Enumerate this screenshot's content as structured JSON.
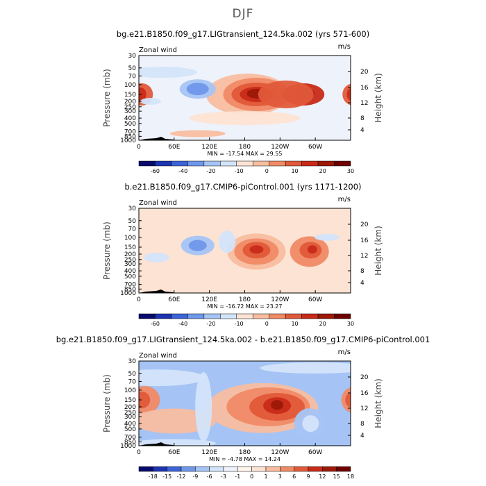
{
  "page_title": "DJF",
  "colors": {
    "seq_bar": [
      "#0a0a6e",
      "#1c34b0",
      "#3c64d8",
      "#6f97ea",
      "#a5c4f5",
      "#d3e4fa",
      "#fde3d3",
      "#f8bda0",
      "#f08a66",
      "#e05a3a",
      "#c82a18",
      "#9c1808",
      "#6e0000"
    ],
    "diff_bar": [
      "#0a0a6e",
      "#1c34b0",
      "#3c64d8",
      "#6f97ea",
      "#a5c4f5",
      "#d3e4fa",
      "#eef2fb",
      "#fff5ec",
      "#fde3d3",
      "#f8bda0",
      "#f08a66",
      "#e05a3a",
      "#c82a18",
      "#9c1808",
      "#6e0000"
    ]
  },
  "chart_data": [
    {
      "type": "contour",
      "panel_title": "bg.e21.B1850.f09_g17.LIGtransient_124.5ka.002 (yrs 571-600)",
      "left_string": "Zonal wind",
      "right_string": "m/s",
      "ylabel": "Pressure (mb)",
      "ylabel_right": "Height (km)",
      "yticks": [
        "30",
        "50",
        "70",
        "100",
        "150",
        "200",
        "250",
        "300",
        "400",
        "500",
        "700",
        "850",
        "1000"
      ],
      "yticks_right": [
        "20",
        "16",
        "12",
        "8",
        "4"
      ],
      "xticks": [
        "0",
        "60E",
        "120E",
        "180",
        "120W",
        "60W"
      ],
      "stats": "MIN = -17.54   MAX =  29.55",
      "levels": [
        "-60",
        "-40",
        "-20",
        "-10",
        "0",
        "10",
        "20",
        "30"
      ],
      "features": [
        {
          "lon": 200,
          "p": 150,
          "value": 29.55,
          "note": "max"
        },
        {
          "lon": 280,
          "p": 150,
          "value": 25
        },
        {
          "lon": 5,
          "p": 150,
          "value": 15
        },
        {
          "lon": 100,
          "p": 120,
          "value": -17.54,
          "note": "min"
        }
      ]
    },
    {
      "type": "contour",
      "panel_title": "b.e21.B1850.f09_g17.CMIP6-piControl.001 (yrs 1171-1200)",
      "left_string": "Zonal wind",
      "right_string": "m/s",
      "ylabel": "Pressure (mb)",
      "ylabel_right": "Height (km)",
      "yticks": [
        "30",
        "50",
        "70",
        "100",
        "150",
        "200",
        "250",
        "300",
        "400",
        "500",
        "700",
        "850",
        "1000"
      ],
      "yticks_right": [
        "20",
        "16",
        "12",
        "8",
        "4"
      ],
      "xticks": [
        "0",
        "60E",
        "120E",
        "180",
        "120W",
        "60W"
      ],
      "stats": "MIN = -16.72   MAX =  23.27",
      "levels": [
        "-60",
        "-40",
        "-20",
        "-10",
        "0",
        "10",
        "20",
        "30"
      ],
      "features": [
        {
          "lon": 200,
          "p": 200,
          "value": 23.27,
          "note": "max"
        },
        {
          "lon": 290,
          "p": 200,
          "value": 20
        },
        {
          "lon": 100,
          "p": 150,
          "value": -16.72,
          "note": "min"
        }
      ]
    },
    {
      "type": "contour",
      "panel_title": "bg.e21.B1850.f09_g17.LIGtransient_124.5ka.002 - b.e21.B1850.f09_g17.CMIP6-piControl.001",
      "left_string": "Zonal wind",
      "right_string": "m/s",
      "ylabel": "Pressure (mb)",
      "ylabel_right": "Height (km)",
      "yticks": [
        "30",
        "50",
        "70",
        "100",
        "150",
        "200",
        "250",
        "300",
        "400",
        "500",
        "700",
        "850",
        "1000"
      ],
      "yticks_right": [
        "20",
        "16",
        "12",
        "8",
        "4"
      ],
      "xticks": [
        "0",
        "60E",
        "120E",
        "180",
        "120W",
        "60W"
      ],
      "stats": "MIN = -4.78   MAX =  14.24",
      "levels": [
        "-18",
        "-15",
        "-12",
        "-9",
        "-6",
        "-3",
        "-1",
        "0",
        "1",
        "3",
        "6",
        "9",
        "12",
        "15",
        "18"
      ],
      "features": [
        {
          "lon": 240,
          "p": 200,
          "value": 14.24,
          "note": "max"
        },
        {
          "lon": 5,
          "p": 150,
          "value": 8
        },
        {
          "lon": 290,
          "p": 400,
          "value": -4.78,
          "note": "min"
        }
      ]
    }
  ]
}
